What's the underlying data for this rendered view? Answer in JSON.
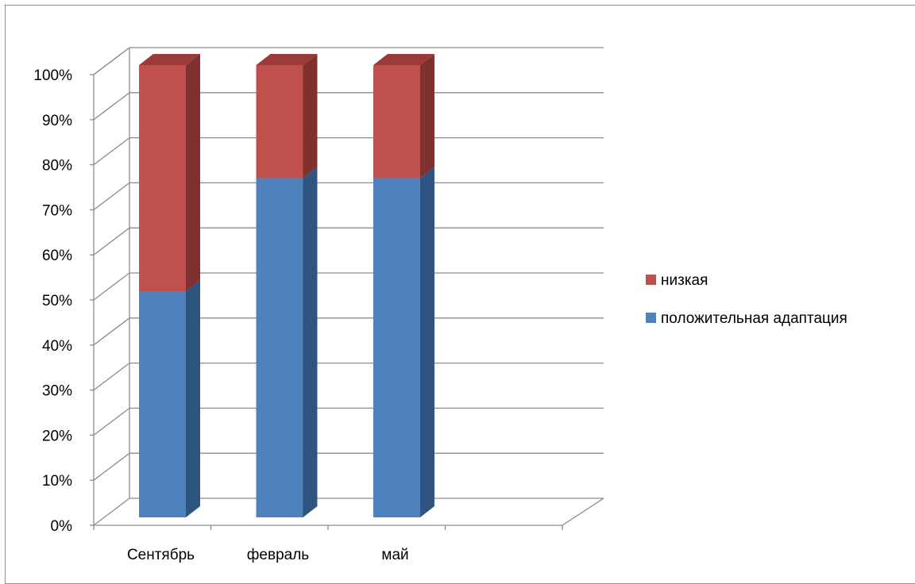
{
  "chart_data": {
    "type": "bar",
    "stacked": true,
    "percent_stacked": true,
    "three_d": true,
    "categories": [
      "Сентябрь",
      "февраль",
      "май"
    ],
    "series": [
      {
        "name": "положительная адаптация",
        "values": [
          50,
          75,
          75
        ],
        "color": "#4f81bd",
        "side_color": "#2f547f",
        "top_color": "#3d6799"
      },
      {
        "name": "низкая",
        "values": [
          50,
          25,
          25
        ],
        "color": "#c0504d",
        "side_color": "#7f3130",
        "top_color": "#9b3b39"
      }
    ],
    "y_ticks": [
      "0%",
      "10%",
      "20%",
      "30%",
      "40%",
      "50%",
      "60%",
      "70%",
      "80%",
      "90%",
      "100%"
    ],
    "ylim": [
      0,
      100
    ],
    "grid": true,
    "legend_position": "right",
    "title": "",
    "xlabel": "",
    "ylabel": ""
  }
}
